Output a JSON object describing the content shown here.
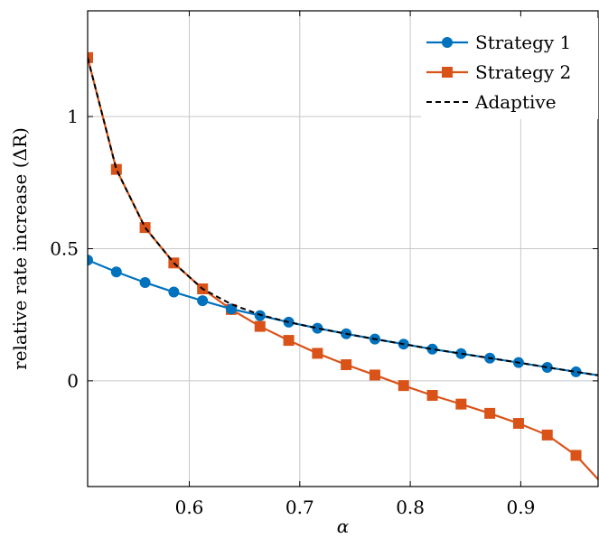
{
  "chart_data": {
    "type": "line",
    "xlabel": "α",
    "ylabel": "relative rate increase (ΔR)",
    "xlim": [
      0.508,
      0.97
    ],
    "ylim": [
      -0.4,
      1.4
    ],
    "xticks": [
      0.6,
      0.7,
      0.8,
      0.9
    ],
    "xtick_labels": [
      "0.6",
      "0.7",
      "0.8",
      "0.9"
    ],
    "yticks": [
      0,
      0.5,
      1
    ],
    "ytick_labels": [
      "0",
      "0.5",
      "1"
    ],
    "grid": true,
    "legend_position": "top-right",
    "series": [
      {
        "name": "Strategy 1",
        "color": "#0072bd",
        "marker": "circle",
        "line": "solid",
        "x": [
          0.508,
          0.534,
          0.56,
          0.586,
          0.612,
          0.638,
          0.664,
          0.69,
          0.716,
          0.742,
          0.768,
          0.794,
          0.82,
          0.846,
          0.872,
          0.898,
          0.924,
          0.95,
          0.976
        ],
        "y": [
          0.457,
          0.412,
          0.372,
          0.336,
          0.303,
          0.272,
          0.247,
          0.222,
          0.199,
          0.178,
          0.158,
          0.139,
          0.12,
          0.103,
          0.086,
          0.069,
          0.051,
          0.034,
          0.017
        ]
      },
      {
        "name": "Strategy 2",
        "color": "#d95319",
        "marker": "square",
        "line": "solid",
        "x": [
          0.508,
          0.534,
          0.56,
          0.586,
          0.612,
          0.638,
          0.664,
          0.69,
          0.716,
          0.742,
          0.768,
          0.794,
          0.82,
          0.846,
          0.872,
          0.898,
          0.924,
          0.95,
          0.976
        ],
        "y": [
          1.223,
          0.8,
          0.58,
          0.446,
          0.348,
          0.27,
          0.206,
          0.153,
          0.104,
          0.061,
          0.022,
          -0.018,
          -0.055,
          -0.088,
          -0.123,
          -0.161,
          -0.205,
          -0.282,
          -0.4
        ]
      },
      {
        "name": "Adaptive",
        "color": "#000000",
        "marker": "none",
        "line": "dashed",
        "x": [
          0.508,
          0.534,
          0.56,
          0.586,
          0.612,
          0.638,
          0.664,
          0.69,
          0.716,
          0.742,
          0.768,
          0.794,
          0.82,
          0.846,
          0.872,
          0.898,
          0.924,
          0.95,
          0.976
        ],
        "y": [
          1.223,
          0.8,
          0.58,
          0.446,
          0.348,
          0.29,
          0.25,
          0.222,
          0.199,
          0.178,
          0.158,
          0.139,
          0.12,
          0.103,
          0.086,
          0.069,
          0.051,
          0.034,
          0.017
        ]
      }
    ]
  }
}
